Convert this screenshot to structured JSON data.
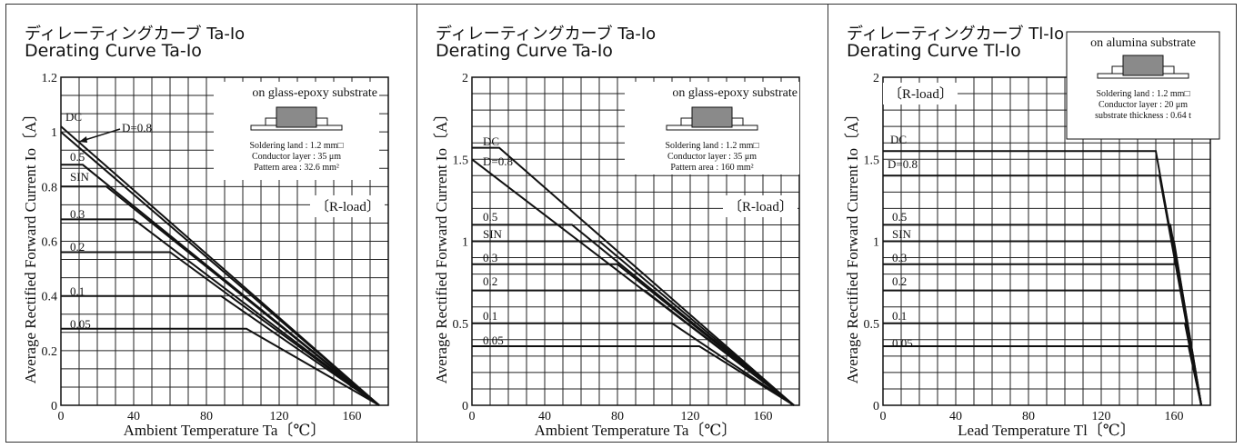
{
  "chart_data": [
    {
      "type": "line",
      "title_jp": "ディレーティングカーブ Ta-Io",
      "title": "Derating Curve Ta-Io",
      "xlabel": "Ambient Temperature Ta〔℃〕",
      "ylabel": "Average Rectified Forward Current Io〔A〕",
      "xlim": [
        0,
        180
      ],
      "ylim": [
        0,
        1.2
      ],
      "xticks": [
        "0",
        "40",
        "80",
        "120",
        "160"
      ],
      "yticks": [
        "0",
        "0.2",
        "0.4",
        "0.6",
        "0.8",
        "1",
        "1.2"
      ],
      "grid": true,
      "legend_box": [
        "on glass-epoxy substrate",
        "Soldering land : 1.2 mm□",
        "Conductor layer : 35 μm",
        "Pattern area : 32.6 mm²"
      ],
      "load_label": "〔R-load〕",
      "series": [
        {
          "name": "DC",
          "points": [
            [
              0,
              1.02
            ],
            [
              175,
              0
            ]
          ]
        },
        {
          "name": "D=0.8",
          "points": [
            [
              0,
              1.0
            ],
            [
              175,
              0
            ]
          ]
        },
        {
          "name": "0.5",
          "points": [
            [
              0,
              0.88
            ],
            [
              12,
              0.88
            ],
            [
              175,
              0
            ]
          ]
        },
        {
          "name": "SIN",
          "points": [
            [
              0,
              0.8
            ],
            [
              25,
              0.8
            ],
            [
              175,
              0
            ]
          ]
        },
        {
          "name": "0.3",
          "points": [
            [
              0,
              0.68
            ],
            [
              40,
              0.68
            ],
            [
              175,
              0
            ]
          ]
        },
        {
          "name": "0.2",
          "points": [
            [
              0,
              0.56
            ],
            [
              60,
              0.56
            ],
            [
              175,
              0
            ]
          ]
        },
        {
          "name": "0.1",
          "points": [
            [
              0,
              0.4
            ],
            [
              88,
              0.4
            ],
            [
              175,
              0
            ]
          ]
        },
        {
          "name": "0.05",
          "points": [
            [
              0,
              0.28
            ],
            [
              102,
              0.28
            ],
            [
              175,
              0
            ]
          ]
        }
      ]
    },
    {
      "type": "line",
      "title_jp": "ディレーティングカーブ Ta-Io",
      "title": "Derating Curve Ta-Io",
      "xlabel": "Ambient Temperature Ta〔℃〕",
      "ylabel": "Average Rectified Forward Current Io〔A〕",
      "xlim": [
        0,
        180
      ],
      "ylim": [
        0,
        2
      ],
      "xticks": [
        "0",
        "40",
        "80",
        "120",
        "160"
      ],
      "yticks": [
        "0",
        "0.5",
        "1",
        "1.5",
        "2"
      ],
      "grid": true,
      "legend_box": [
        "on glass-epoxy substrate",
        "Soldering land : 1.2 mm□",
        "Conductor layer : 35 μm",
        "Pattern area : 160 mm²"
      ],
      "load_label": "〔R-load〕",
      "series": [
        {
          "name": "DC",
          "points": [
            [
              0,
              1.57
            ],
            [
              15,
              1.57
            ],
            [
              177,
              0
            ]
          ]
        },
        {
          "name": "D=0.8",
          "points": [
            [
              0,
              1.5
            ],
            [
              177,
              0
            ]
          ]
        },
        {
          "name": "0.5",
          "points": [
            [
              0,
              1.1
            ],
            [
              55,
              1.1
            ],
            [
              177,
              0
            ]
          ]
        },
        {
          "name": "SIN",
          "points": [
            [
              0,
              1.0
            ],
            [
              70,
              1.0
            ],
            [
              177,
              0
            ]
          ]
        },
        {
          "name": "0.3",
          "points": [
            [
              0,
              0.86
            ],
            [
              80,
              0.86
            ],
            [
              177,
              0
            ]
          ]
        },
        {
          "name": "0.2",
          "points": [
            [
              0,
              0.7
            ],
            [
              95,
              0.7
            ],
            [
              177,
              0
            ]
          ]
        },
        {
          "name": "0.1",
          "points": [
            [
              0,
              0.5
            ],
            [
              110,
              0.5
            ],
            [
              177,
              0
            ]
          ]
        },
        {
          "name": "0.05",
          "points": [
            [
              0,
              0.36
            ],
            [
              125,
              0.36
            ],
            [
              177,
              0
            ]
          ]
        }
      ]
    },
    {
      "type": "line",
      "title_jp": "ディレーティングカーブ Tl-Io",
      "title": "Derating Curve Tl-Io",
      "xlabel": "Lead Temperature Tl〔℃〕",
      "ylabel": "Average Rectified Forward Current Io〔A〕",
      "xlim": [
        0,
        180
      ],
      "ylim": [
        0,
        2
      ],
      "xticks": [
        "0",
        "40",
        "80",
        "120",
        "160"
      ],
      "yticks": [
        "0",
        "0.5",
        "1",
        "1.5",
        "2"
      ],
      "grid": true,
      "legend_box": [
        "on alumina substrate",
        "Soldering land : 1.2 mm□",
        "Conductor layer : 20 μm",
        "substrate thickness : 0.64 t"
      ],
      "load_label": "〔R-load〕",
      "series": [
        {
          "name": "DC",
          "points": [
            [
              0,
              1.55
            ],
            [
              150,
              1.55
            ],
            [
              175,
              0
            ]
          ]
        },
        {
          "name": "D=0.8",
          "points": [
            [
              0,
              1.4
            ],
            [
              152,
              1.4
            ],
            [
              175,
              0
            ]
          ]
        },
        {
          "name": "0.5",
          "points": [
            [
              0,
              1.1
            ],
            [
              158,
              1.1
            ],
            [
              175,
              0
            ]
          ]
        },
        {
          "name": "SIN",
          "points": [
            [
              0,
              1.0
            ],
            [
              160,
              1.0
            ],
            [
              175,
              0
            ]
          ]
        },
        {
          "name": "0.3",
          "points": [
            [
              0,
              0.86
            ],
            [
              162,
              0.86
            ],
            [
              175,
              0
            ]
          ]
        },
        {
          "name": "0.2",
          "points": [
            [
              0,
              0.7
            ],
            [
              164,
              0.7
            ],
            [
              175,
              0
            ]
          ]
        },
        {
          "name": "0.1",
          "points": [
            [
              0,
              0.5
            ],
            [
              166,
              0.5
            ],
            [
              175,
              0
            ]
          ]
        },
        {
          "name": "0.05",
          "points": [
            [
              0,
              0.36
            ],
            [
              168,
              0.36
            ],
            [
              175,
              0
            ]
          ]
        }
      ]
    }
  ]
}
